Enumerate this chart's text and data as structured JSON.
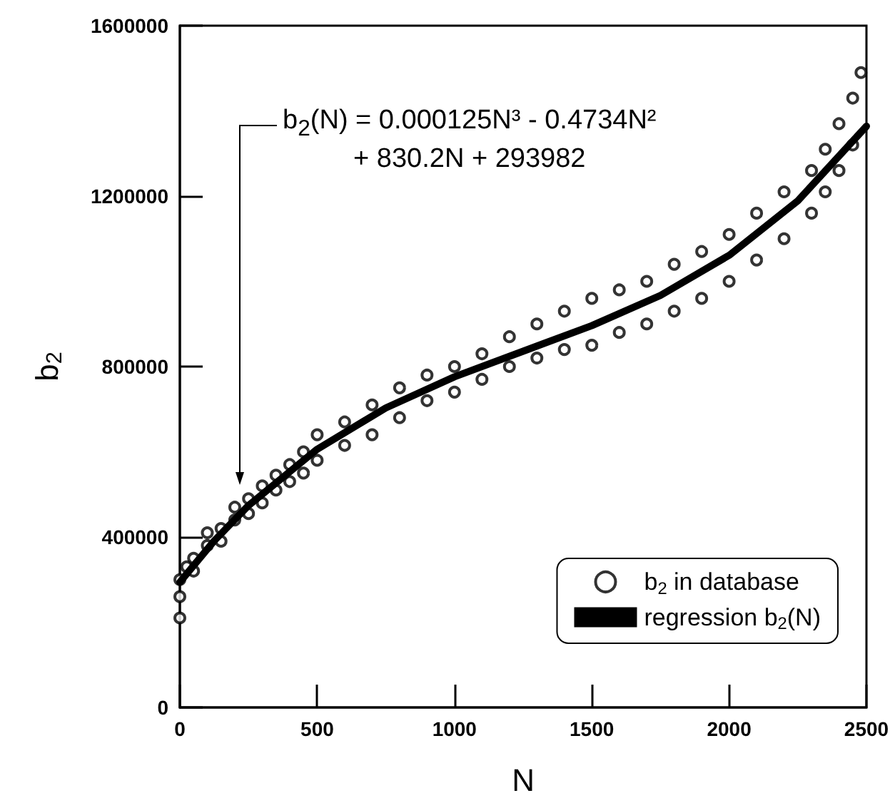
{
  "chart_data": {
    "type": "scatter",
    "xlabel": "N",
    "ylabel": "b$_{2}$",
    "xlim": [
      0,
      2500
    ],
    "ylim": [
      0,
      1600000
    ],
    "xticks": [
      0,
      500,
      1000,
      1500,
      2000,
      2500
    ],
    "yticks": [
      0,
      400000,
      800000,
      1200000,
      1600000
    ],
    "legend": "bottom right",
    "grid": false,
    "annotations": [
      "b$_{2}$(N) = 0.000125N³ - 0.4734N²\n+ 830.2N + 293982"
    ],
    "series": [
      {
        "name": "b$_{2}$ in database",
        "marker": "circle",
        "color": "#000000",
        "x": [
          0,
          0,
          0,
          25,
          50,
          50,
          100,
          100,
          150,
          150,
          200,
          200,
          250,
          250,
          300,
          300,
          350,
          350,
          400,
          400,
          450,
          450,
          500,
          500,
          600,
          600,
          700,
          700,
          800,
          800,
          900,
          900,
          1000,
          1000,
          1100,
          1100,
          1200,
          1200,
          1300,
          1300,
          1400,
          1400,
          1500,
          1500,
          1600,
          1600,
          1700,
          1700,
          1800,
          1800,
          1900,
          1900,
          2000,
          2000,
          2100,
          2100,
          2200,
          2200,
          2300,
          2300,
          2350,
          2350,
          2400,
          2400,
          2450,
          2450,
          2480
        ],
        "values": [
          210000,
          260000,
          300000,
          330000,
          350000,
          320000,
          380000,
          410000,
          420000,
          390000,
          470000,
          440000,
          490000,
          455000,
          520000,
          480000,
          545000,
          510000,
          570000,
          530000,
          600000,
          550000,
          640000,
          580000,
          670000,
          615000,
          710000,
          640000,
          750000,
          680000,
          780000,
          720000,
          800000,
          740000,
          830000,
          770000,
          870000,
          800000,
          900000,
          820000,
          930000,
          840000,
          960000,
          850000,
          980000,
          880000,
          1000000,
          900000,
          1040000,
          930000,
          1070000,
          960000,
          1110000,
          1000000,
          1160000,
          1050000,
          1210000,
          1100000,
          1260000,
          1160000,
          1310000,
          1210000,
          1370000,
          1260000,
          1430000,
          1320000,
          1490000
        ]
      },
      {
        "name": "regression b$_{2}$(N)",
        "type": "line",
        "marker": "none",
        "color": "#000000",
        "x": [
          0,
          125,
          250,
          500,
          750,
          1000,
          1250,
          1500,
          1750,
          2000,
          2250,
          2500
        ],
        "values": [
          294000,
          391000,
          474000,
          606000,
          703000,
          776000,
          836000,
          896000,
          967000,
          1061000,
          1189000,
          1364000
        ]
      }
    ]
  }
}
